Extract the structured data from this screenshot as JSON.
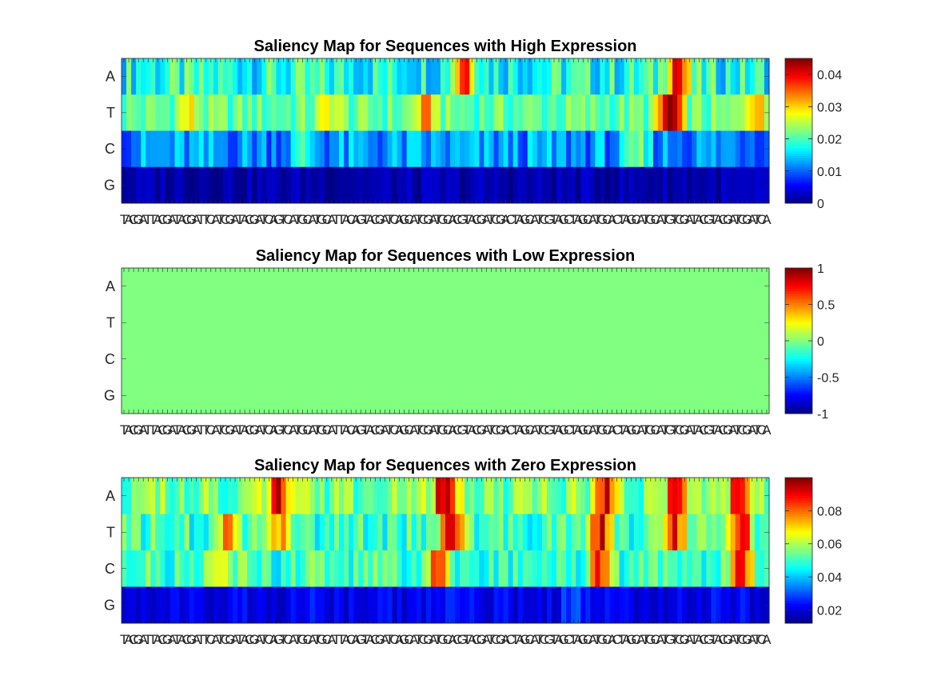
{
  "chart_data": [
    {
      "type": "heatmap",
      "title": "Saliency Map for Sequences with High Expression",
      "rows": [
        "A",
        "T",
        "C",
        "G"
      ],
      "columns": "TACGATTACGATACGATTCATCGATACGATCAGTCATGCATGCATTACAGTACGATCAGCATCGATGCACGTACGATCGACTAGCATCGTAGCTAGCATGCACTAGCATGCATGTCGATACGTACGATCGATCA",
      "colorbar": {
        "min": 0,
        "max": 0.045,
        "ticks": [
          0,
          0.01,
          0.02,
          0.03,
          0.04
        ]
      },
      "colormap": "jet",
      "row_profiles": {
        "A": {
          "base": 0.018,
          "var": 0.006,
          "hot": [
            [
              0.53,
              0.022
            ],
            [
              0.86,
              0.024
            ]
          ]
        },
        "T": {
          "base": 0.021,
          "var": 0.004,
          "hot": [
            [
              0.1,
              0.007
            ],
            [
              0.32,
              0.007
            ],
            [
              0.47,
              0.011
            ],
            [
              0.85,
              0.024
            ],
            [
              0.98,
              0.012
            ]
          ]
        },
        "C": {
          "base": 0.012,
          "var": 0.005,
          "hot": [
            [
              0.28,
              0.006
            ],
            [
              0.8,
              0.008
            ]
          ]
        },
        "G": {
          "base": 0.002,
          "var": 0.002,
          "hot": []
        }
      }
    },
    {
      "type": "heatmap",
      "title": "Saliency Map for Sequences with Low Expression",
      "rows": [
        "A",
        "T",
        "C",
        "G"
      ],
      "columns": "TACGATTACGATACGATTCATCGATACGATCAGTCATGCATGCATTACAGTACGATCAGCATCGATGCACGTACGATCGACTAGCATCGTAGCTAGCATGCACTAGCATGCATGTCGATACGTACGATCGATCA",
      "colorbar": {
        "min": -1,
        "max": 1,
        "ticks": [
          -1,
          -0.5,
          0,
          0.5,
          1
        ]
      },
      "colormap": "jet",
      "uniform_value": 0
    },
    {
      "type": "heatmap",
      "title": "Saliency Map for Sequences with Zero Expression",
      "rows": [
        "A",
        "T",
        "C",
        "G"
      ],
      "columns": "TACGATTACGATACGATTCATCGATACGATCAGTCATGCATGCATTACAGTACGATCAGCATCGATGCACGTACGATCGACTAGCATCGTAGCTAGCATGCACTAGCATGCATGTCGATACGTACGATCGATCA",
      "colorbar": {
        "min": 0.012,
        "max": 0.1,
        "ticks": [
          0.02,
          0.04,
          0.06,
          0.08
        ]
      },
      "colormap": "jet",
      "row_profiles": {
        "A": {
          "base": 0.055,
          "var": 0.01,
          "hot": [
            [
              0.24,
              0.035
            ],
            [
              0.5,
              0.045
            ],
            [
              0.75,
              0.04
            ],
            [
              0.86,
              0.035
            ],
            [
              0.96,
              0.04
            ]
          ]
        },
        "T": {
          "base": 0.05,
          "var": 0.01,
          "hot": [
            [
              0.16,
              0.03
            ],
            [
              0.24,
              0.025
            ],
            [
              0.51,
              0.045
            ],
            [
              0.74,
              0.04
            ],
            [
              0.86,
              0.035
            ],
            [
              0.96,
              0.04
            ]
          ]
        },
        "C": {
          "base": 0.05,
          "var": 0.01,
          "hot": [
            [
              0.15,
              0.02
            ],
            [
              0.49,
              0.035
            ],
            [
              0.74,
              0.035
            ],
            [
              0.96,
              0.035
            ]
          ]
        },
        "G": {
          "base": 0.022,
          "var": 0.005,
          "hot": [
            [
              0.7,
              0.008
            ]
          ]
        }
      }
    }
  ]
}
